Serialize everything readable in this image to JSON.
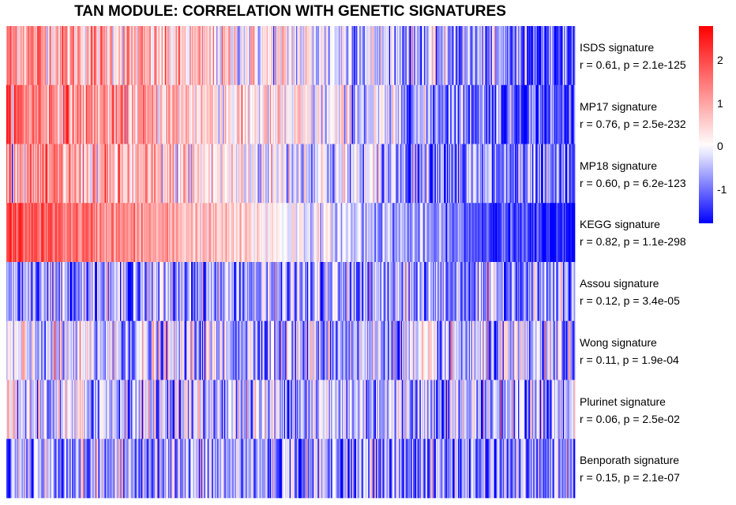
{
  "chart_data": {
    "type": "heatmap",
    "title": "TAN MODULE: CORRELATION WITH GENETIC SIGNATURES",
    "rows": [
      {
        "name": "ISDS signature",
        "stat": "r = 0.61, p = 2.1e-125",
        "r": 0.61,
        "start": 1.3,
        "end": -1.2,
        "noise": 0.9
      },
      {
        "name": "MP17 signature",
        "stat": "r = 0.76, p = 2.5e-232",
        "r": 0.76,
        "start": 1.6,
        "end": -1.4,
        "noise": 0.8
      },
      {
        "name": "MP18 signature",
        "stat": "r = 0.60, p = 6.2e-123",
        "r": 0.6,
        "start": 1.2,
        "end": -1.3,
        "noise": 0.9
      },
      {
        "name": "KEGG signature",
        "stat": "r = 0.82, p = 1.1e-298",
        "r": 0.82,
        "start": 2.0,
        "end": -1.8,
        "noise": 0.5
      },
      {
        "name": "Assou signature",
        "stat": "r = 0.12, p = 3.4e-05",
        "r": 0.12,
        "start": -0.6,
        "end": -0.8,
        "noise": 0.9
      },
      {
        "name": "Wong signature",
        "stat": "r = 0.11, p = 1.9e-04",
        "r": 0.11,
        "start": -0.3,
        "end": -0.6,
        "noise": 1.0
      },
      {
        "name": "Plurinet signature",
        "stat": "r = 0.06, p = 2.5e-02",
        "r": 0.06,
        "start": -0.3,
        "end": -0.5,
        "noise": 1.0
      },
      {
        "name": "Benporath signature",
        "stat": "r = 0.15, p = 2.1e-07",
        "r": 0.15,
        "start": -0.5,
        "end": -0.9,
        "noise": 1.0
      }
    ],
    "colorscale": {
      "low": "#0000FF",
      "mid": "#FFFFFF",
      "high": "#FF0000",
      "min": -1.8,
      "max": 2.8
    },
    "legend": {
      "ticks": [
        2,
        1,
        0,
        -1
      ],
      "placement": "right"
    },
    "columns": 520
  }
}
